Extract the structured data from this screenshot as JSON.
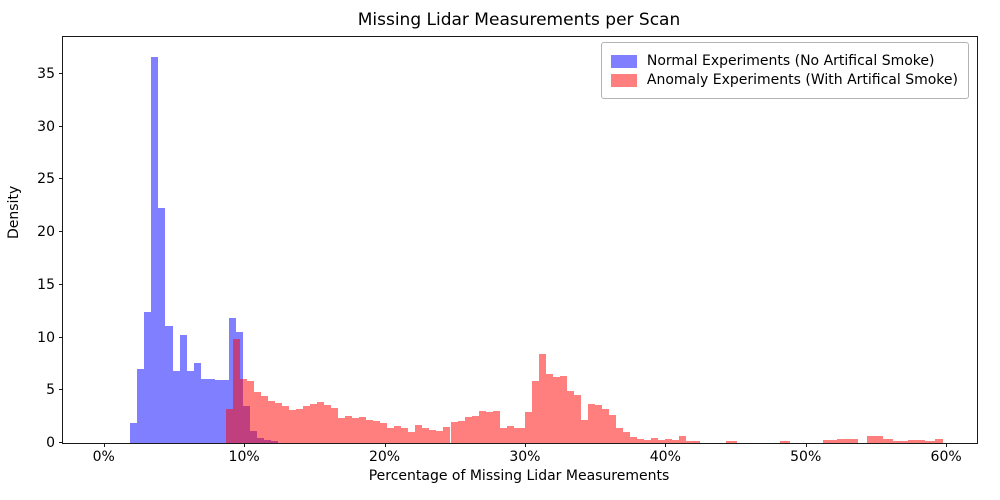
{
  "chart_data": {
    "type": "bar",
    "subtype": "overlaid-histogram",
    "title": "Missing Lidar Measurements per Scan",
    "xlabel": "Percentage of Missing Lidar Measurements",
    "ylabel": "Density",
    "xlim": [
      -2.9,
      62.2
    ],
    "ylim": [
      0,
      38.5
    ],
    "grid": false,
    "x_ticks": [
      {
        "value": 0,
        "label": "0%"
      },
      {
        "value": 10,
        "label": "10%"
      },
      {
        "value": 20,
        "label": "20%"
      },
      {
        "value": 30,
        "label": "30%"
      },
      {
        "value": 40,
        "label": "40%"
      },
      {
        "value": 50,
        "label": "50%"
      },
      {
        "value": 60,
        "label": "60%"
      }
    ],
    "y_ticks": [
      {
        "value": 0,
        "label": "0"
      },
      {
        "value": 5,
        "label": "5"
      },
      {
        "value": 10,
        "label": "10"
      },
      {
        "value": 15,
        "label": "15"
      },
      {
        "value": 20,
        "label": "20"
      },
      {
        "value": 25,
        "label": "25"
      },
      {
        "value": 30,
        "label": "30"
      },
      {
        "value": 35,
        "label": "35"
      }
    ],
    "legend": {
      "position": "upper right",
      "items": [
        {
          "label": "Normal Experiments (No Artifical Smoke)",
          "color": "rgba(0,0,255,0.5)"
        },
        {
          "label": "Anomaly Experiments (With Artifical Smoke)",
          "color": "rgba(255,0,0,0.5)"
        }
      ]
    },
    "overlap_color_hex": "#bf4080",
    "series": [
      {
        "name": "Normal Experiments (No Artifical Smoke)",
        "color": "rgba(0,0,255,0.5)",
        "bars": [
          {
            "x0": 1.9,
            "x1": 2.4,
            "h": 1.9
          },
          {
            "x0": 2.4,
            "x1": 2.9,
            "h": 7.0
          },
          {
            "x0": 2.9,
            "x1": 3.4,
            "h": 12.4
          },
          {
            "x0": 3.4,
            "x1": 3.9,
            "h": 36.6
          },
          {
            "x0": 3.9,
            "x1": 4.4,
            "h": 22.3
          },
          {
            "x0": 4.4,
            "x1": 4.9,
            "h": 11.1
          },
          {
            "x0": 4.9,
            "x1": 5.4,
            "h": 6.8
          },
          {
            "x0": 5.4,
            "x1": 5.9,
            "h": 10.2
          },
          {
            "x0": 5.9,
            "x1": 6.4,
            "h": 6.8
          },
          {
            "x0": 6.4,
            "x1": 6.9,
            "h": 7.6
          },
          {
            "x0": 6.9,
            "x1": 7.4,
            "h": 6.1
          },
          {
            "x0": 7.4,
            "x1": 7.9,
            "h": 6.1
          },
          {
            "x0": 7.9,
            "x1": 8.4,
            "h": 6.0
          },
          {
            "x0": 8.4,
            "x1": 8.9,
            "h": 6.0
          },
          {
            "x0": 8.9,
            "x1": 9.4,
            "h": 11.9
          },
          {
            "x0": 9.4,
            "x1": 9.9,
            "h": 10.5
          },
          {
            "x0": 9.9,
            "x1": 10.4,
            "h": 3.5
          },
          {
            "x0": 10.4,
            "x1": 10.9,
            "h": 1.1
          },
          {
            "x0": 10.9,
            "x1": 11.4,
            "h": 0.5
          },
          {
            "x0": 11.4,
            "x1": 11.9,
            "h": 0.3
          },
          {
            "x0": 11.9,
            "x1": 12.4,
            "h": 0.2
          }
        ]
      },
      {
        "name": "Anomaly Experiments (With Artifical Smoke)",
        "color": "rgba(255,0,0,0.5)",
        "bars": [
          {
            "x0": 8.7,
            "x1": 9.2,
            "h": 3.2
          },
          {
            "x0": 9.2,
            "x1": 9.7,
            "h": 9.9
          },
          {
            "x0": 9.7,
            "x1": 10.2,
            "h": 6.1
          },
          {
            "x0": 10.2,
            "x1": 10.7,
            "h": 5.9
          },
          {
            "x0": 10.7,
            "x1": 11.2,
            "h": 4.8
          },
          {
            "x0": 11.2,
            "x1": 11.7,
            "h": 4.5
          },
          {
            "x0": 11.7,
            "x1": 12.2,
            "h": 4.0
          },
          {
            "x0": 12.2,
            "x1": 12.7,
            "h": 3.8
          },
          {
            "x0": 12.7,
            "x1": 13.2,
            "h": 3.5
          },
          {
            "x0": 13.2,
            "x1": 13.7,
            "h": 3.1
          },
          {
            "x0": 13.7,
            "x1": 14.2,
            "h": 3.2
          },
          {
            "x0": 14.2,
            "x1": 14.7,
            "h": 3.5
          },
          {
            "x0": 14.7,
            "x1": 15.2,
            "h": 3.7
          },
          {
            "x0": 15.2,
            "x1": 15.7,
            "h": 3.85
          },
          {
            "x0": 15.7,
            "x1": 16.2,
            "h": 3.6
          },
          {
            "x0": 16.2,
            "x1": 16.7,
            "h": 3.3
          },
          {
            "x0": 16.7,
            "x1": 17.2,
            "h": 2.4
          },
          {
            "x0": 17.2,
            "x1": 17.7,
            "h": 2.6
          },
          {
            "x0": 17.7,
            "x1": 18.2,
            "h": 2.4
          },
          {
            "x0": 18.2,
            "x1": 18.7,
            "h": 2.5
          },
          {
            "x0": 18.7,
            "x1": 19.2,
            "h": 2.2
          },
          {
            "x0": 19.2,
            "x1": 19.7,
            "h": 2.1
          },
          {
            "x0": 19.7,
            "x1": 20.2,
            "h": 1.9
          },
          {
            "x0": 20.2,
            "x1": 20.7,
            "h": 1.4
          },
          {
            "x0": 20.7,
            "x1": 21.2,
            "h": 1.6
          },
          {
            "x0": 21.2,
            "x1": 21.7,
            "h": 1.4
          },
          {
            "x0": 21.7,
            "x1": 22.2,
            "h": 1.0
          },
          {
            "x0": 22.2,
            "x1": 22.7,
            "h": 1.7
          },
          {
            "x0": 22.7,
            "x1": 23.2,
            "h": 1.4
          },
          {
            "x0": 23.2,
            "x1": 23.7,
            "h": 1.2
          },
          {
            "x0": 23.7,
            "x1": 24.2,
            "h": 1.1
          },
          {
            "x0": 24.2,
            "x1": 24.7,
            "h": 1.5
          },
          {
            "x0": 24.7,
            "x1": 25.2,
            "h": 2.0
          },
          {
            "x0": 25.2,
            "x1": 25.7,
            "h": 2.1
          },
          {
            "x0": 25.7,
            "x1": 26.2,
            "h": 2.45
          },
          {
            "x0": 26.2,
            "x1": 26.7,
            "h": 2.6
          },
          {
            "x0": 26.7,
            "x1": 27.2,
            "h": 3.0
          },
          {
            "x0": 27.2,
            "x1": 27.7,
            "h": 2.95
          },
          {
            "x0": 27.7,
            "x1": 28.2,
            "h": 3.0
          },
          {
            "x0": 28.2,
            "x1": 28.7,
            "h": 1.4
          },
          {
            "x0": 28.7,
            "x1": 29.2,
            "h": 1.6
          },
          {
            "x0": 29.2,
            "x1": 29.7,
            "h": 1.4
          },
          {
            "x0": 29.7,
            "x1": 30.0,
            "h": 1.4
          },
          {
            "x0": 30.0,
            "x1": 30.5,
            "h": 2.9
          },
          {
            "x0": 30.5,
            "x1": 31.0,
            "h": 5.85
          },
          {
            "x0": 31.0,
            "x1": 31.5,
            "h": 8.4
          },
          {
            "x0": 31.5,
            "x1": 32.0,
            "h": 6.5
          },
          {
            "x0": 32.0,
            "x1": 32.5,
            "h": 6.3
          },
          {
            "x0": 32.5,
            "x1": 33.0,
            "h": 6.4
          },
          {
            "x0": 33.0,
            "x1": 33.5,
            "h": 4.9
          },
          {
            "x0": 33.5,
            "x1": 34.0,
            "h": 4.6
          },
          {
            "x0": 34.0,
            "x1": 34.5,
            "h": 2.2
          },
          {
            "x0": 34.5,
            "x1": 35.0,
            "h": 3.7
          },
          {
            "x0": 35.0,
            "x1": 35.5,
            "h": 3.6
          },
          {
            "x0": 35.5,
            "x1": 36.0,
            "h": 3.2
          },
          {
            "x0": 36.0,
            "x1": 36.5,
            "h": 2.7
          },
          {
            "x0": 36.5,
            "x1": 37.0,
            "h": 1.4
          },
          {
            "x0": 37.0,
            "x1": 37.5,
            "h": 1.0
          },
          {
            "x0": 37.5,
            "x1": 38.0,
            "h": 0.6
          },
          {
            "x0": 38.0,
            "x1": 38.5,
            "h": 0.4
          },
          {
            "x0": 38.5,
            "x1": 39.0,
            "h": 0.25
          },
          {
            "x0": 39.0,
            "x1": 39.5,
            "h": 0.5
          },
          {
            "x0": 39.5,
            "x1": 40.0,
            "h": 0.3
          },
          {
            "x0": 40.0,
            "x1": 40.5,
            "h": 0.35
          },
          {
            "x0": 40.5,
            "x1": 41.0,
            "h": 0.3
          },
          {
            "x0": 41.0,
            "x1": 41.5,
            "h": 0.65
          },
          {
            "x0": 41.5,
            "x1": 42.0,
            "h": 0.2
          },
          {
            "x0": 42.0,
            "x1": 42.5,
            "h": 0.15
          },
          {
            "x0": 44.3,
            "x1": 45.1,
            "h": 0.15
          },
          {
            "x0": 48.2,
            "x1": 48.9,
            "h": 0.2
          },
          {
            "x0": 51.2,
            "x1": 52.2,
            "h": 0.28
          },
          {
            "x0": 52.2,
            "x1": 53.7,
            "h": 0.38
          },
          {
            "x0": 54.4,
            "x1": 55.5,
            "h": 0.7
          },
          {
            "x0": 55.5,
            "x1": 56.2,
            "h": 0.38
          },
          {
            "x0": 56.2,
            "x1": 57.3,
            "h": 0.22
          },
          {
            "x0": 57.3,
            "x1": 58.5,
            "h": 0.32
          },
          {
            "x0": 58.5,
            "x1": 59.2,
            "h": 0.22
          },
          {
            "x0": 59.2,
            "x1": 59.8,
            "h": 0.38
          }
        ]
      }
    ]
  }
}
